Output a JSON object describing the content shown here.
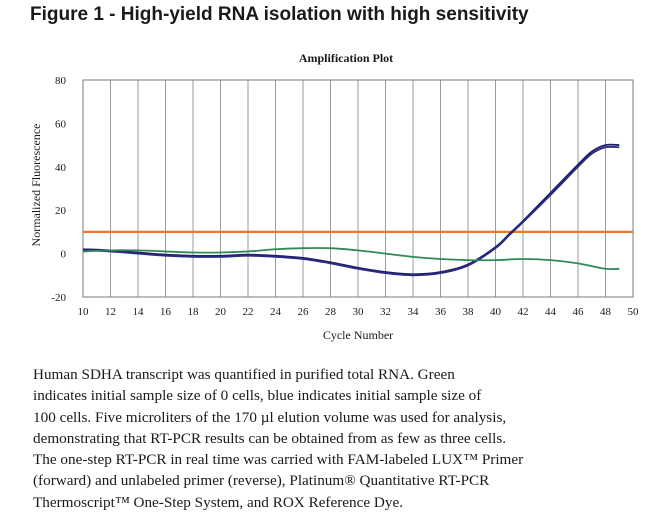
{
  "figure_title": "Figure 1 - High-yield RNA isolation with high sensitivity",
  "chart_data": {
    "type": "line",
    "title": "Amplification Plot",
    "xlabel": "Cycle Number",
    "ylabel": "Normalized Fluorescence",
    "xlim": [
      10,
      50
    ],
    "ylim": [
      -20,
      80
    ],
    "x_ticks": [
      10,
      12,
      14,
      16,
      18,
      20,
      22,
      24,
      26,
      28,
      30,
      32,
      34,
      36,
      38,
      40,
      42,
      44,
      46,
      48,
      50
    ],
    "y_ticks": [
      -20,
      0,
      20,
      40,
      60,
      80
    ],
    "grid": "vertical",
    "threshold": {
      "value": 10,
      "color": "#e8782a"
    },
    "series": [
      {
        "color": "#1f1f6b",
        "x": [
          10,
          12,
          14,
          16,
          18,
          20,
          22,
          24,
          26,
          28,
          30,
          32,
          34,
          36,
          38,
          40,
          41,
          42,
          44,
          46,
          47,
          48,
          49
        ],
        "y": [
          2,
          1.5,
          0.5,
          -0.5,
          -1,
          -1,
          -0.5,
          -1,
          -2,
          -4,
          -6.5,
          -8.5,
          -9.5,
          -8.5,
          -5,
          3,
          9,
          15,
          28,
          41,
          47,
          50,
          50
        ]
      },
      {
        "color": "#2a2a80",
        "x": [
          10,
          12,
          14,
          16,
          18,
          20,
          22,
          24,
          26,
          28,
          30,
          32,
          34,
          36,
          38,
          40,
          41,
          42,
          44,
          46,
          47,
          48,
          49
        ],
        "y": [
          1.5,
          1,
          0,
          -1,
          -1.5,
          -1.5,
          -1,
          -1.5,
          -2.5,
          -4.5,
          -7,
          -9,
          -10,
          -9,
          -5.5,
          2.5,
          8.5,
          14.5,
          27,
          40,
          46,
          49,
          49
        ]
      },
      {
        "color": "#2e8b57",
        "x": [
          10,
          12,
          14,
          16,
          18,
          20,
          22,
          24,
          26,
          28,
          30,
          32,
          34,
          36,
          38,
          40,
          42,
          44,
          46,
          48,
          49
        ],
        "y": [
          1,
          1.5,
          1.5,
          1,
          0.5,
          0.5,
          1,
          2,
          2.5,
          2.5,
          1.5,
          0,
          -1.5,
          -2.5,
          -3,
          -3,
          -2.5,
          -3,
          -4.5,
          -7,
          -7
        ]
      }
    ]
  },
  "caption_lines": [
    "Human SDHA transcript was quantified in purified total RNA. Green",
    "indicates initial sample size of 0 cells, blue indicates initial sample size of",
    "100 cells. Five microliters of the 170 µl elution volume was used for analysis,",
    "demonstrating that RT-PCR results can be obtained from as few as three cells.",
    "The one-step RT-PCR in real time was carried with FAM-labeled LUX™ Primer",
    "(forward) and unlabeled primer (reverse), Platinum® Quantitative RT-PCR",
    "Thermoscript™ One-Step System, and ROX Reference Dye."
  ]
}
